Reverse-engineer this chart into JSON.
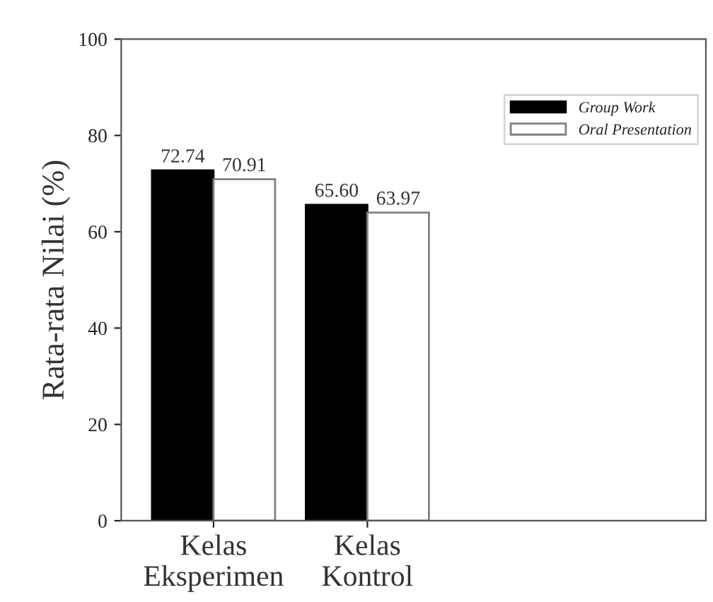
{
  "chart_data": {
    "type": "bar",
    "ylabel": "Rata-rata Nilai (%)",
    "categories": [
      "Kelas\nEksperimen",
      "Kelas\nKontrol"
    ],
    "series": [
      {
        "name": "Group Work",
        "color": "#000000",
        "values": [
          72.74,
          65.6
        ]
      },
      {
        "name": "Oral Presentation",
        "color": "#ffffff",
        "values": [
          70.91,
          63.97
        ]
      }
    ],
    "value_labels": [
      [
        "72.74",
        "65.60"
      ],
      [
        "70.91",
        "63.97"
      ]
    ],
    "ylim": [
      0,
      100
    ],
    "yticks": [
      0,
      20,
      40,
      60,
      80,
      100
    ],
    "legend": "top right",
    "grid": false
  }
}
